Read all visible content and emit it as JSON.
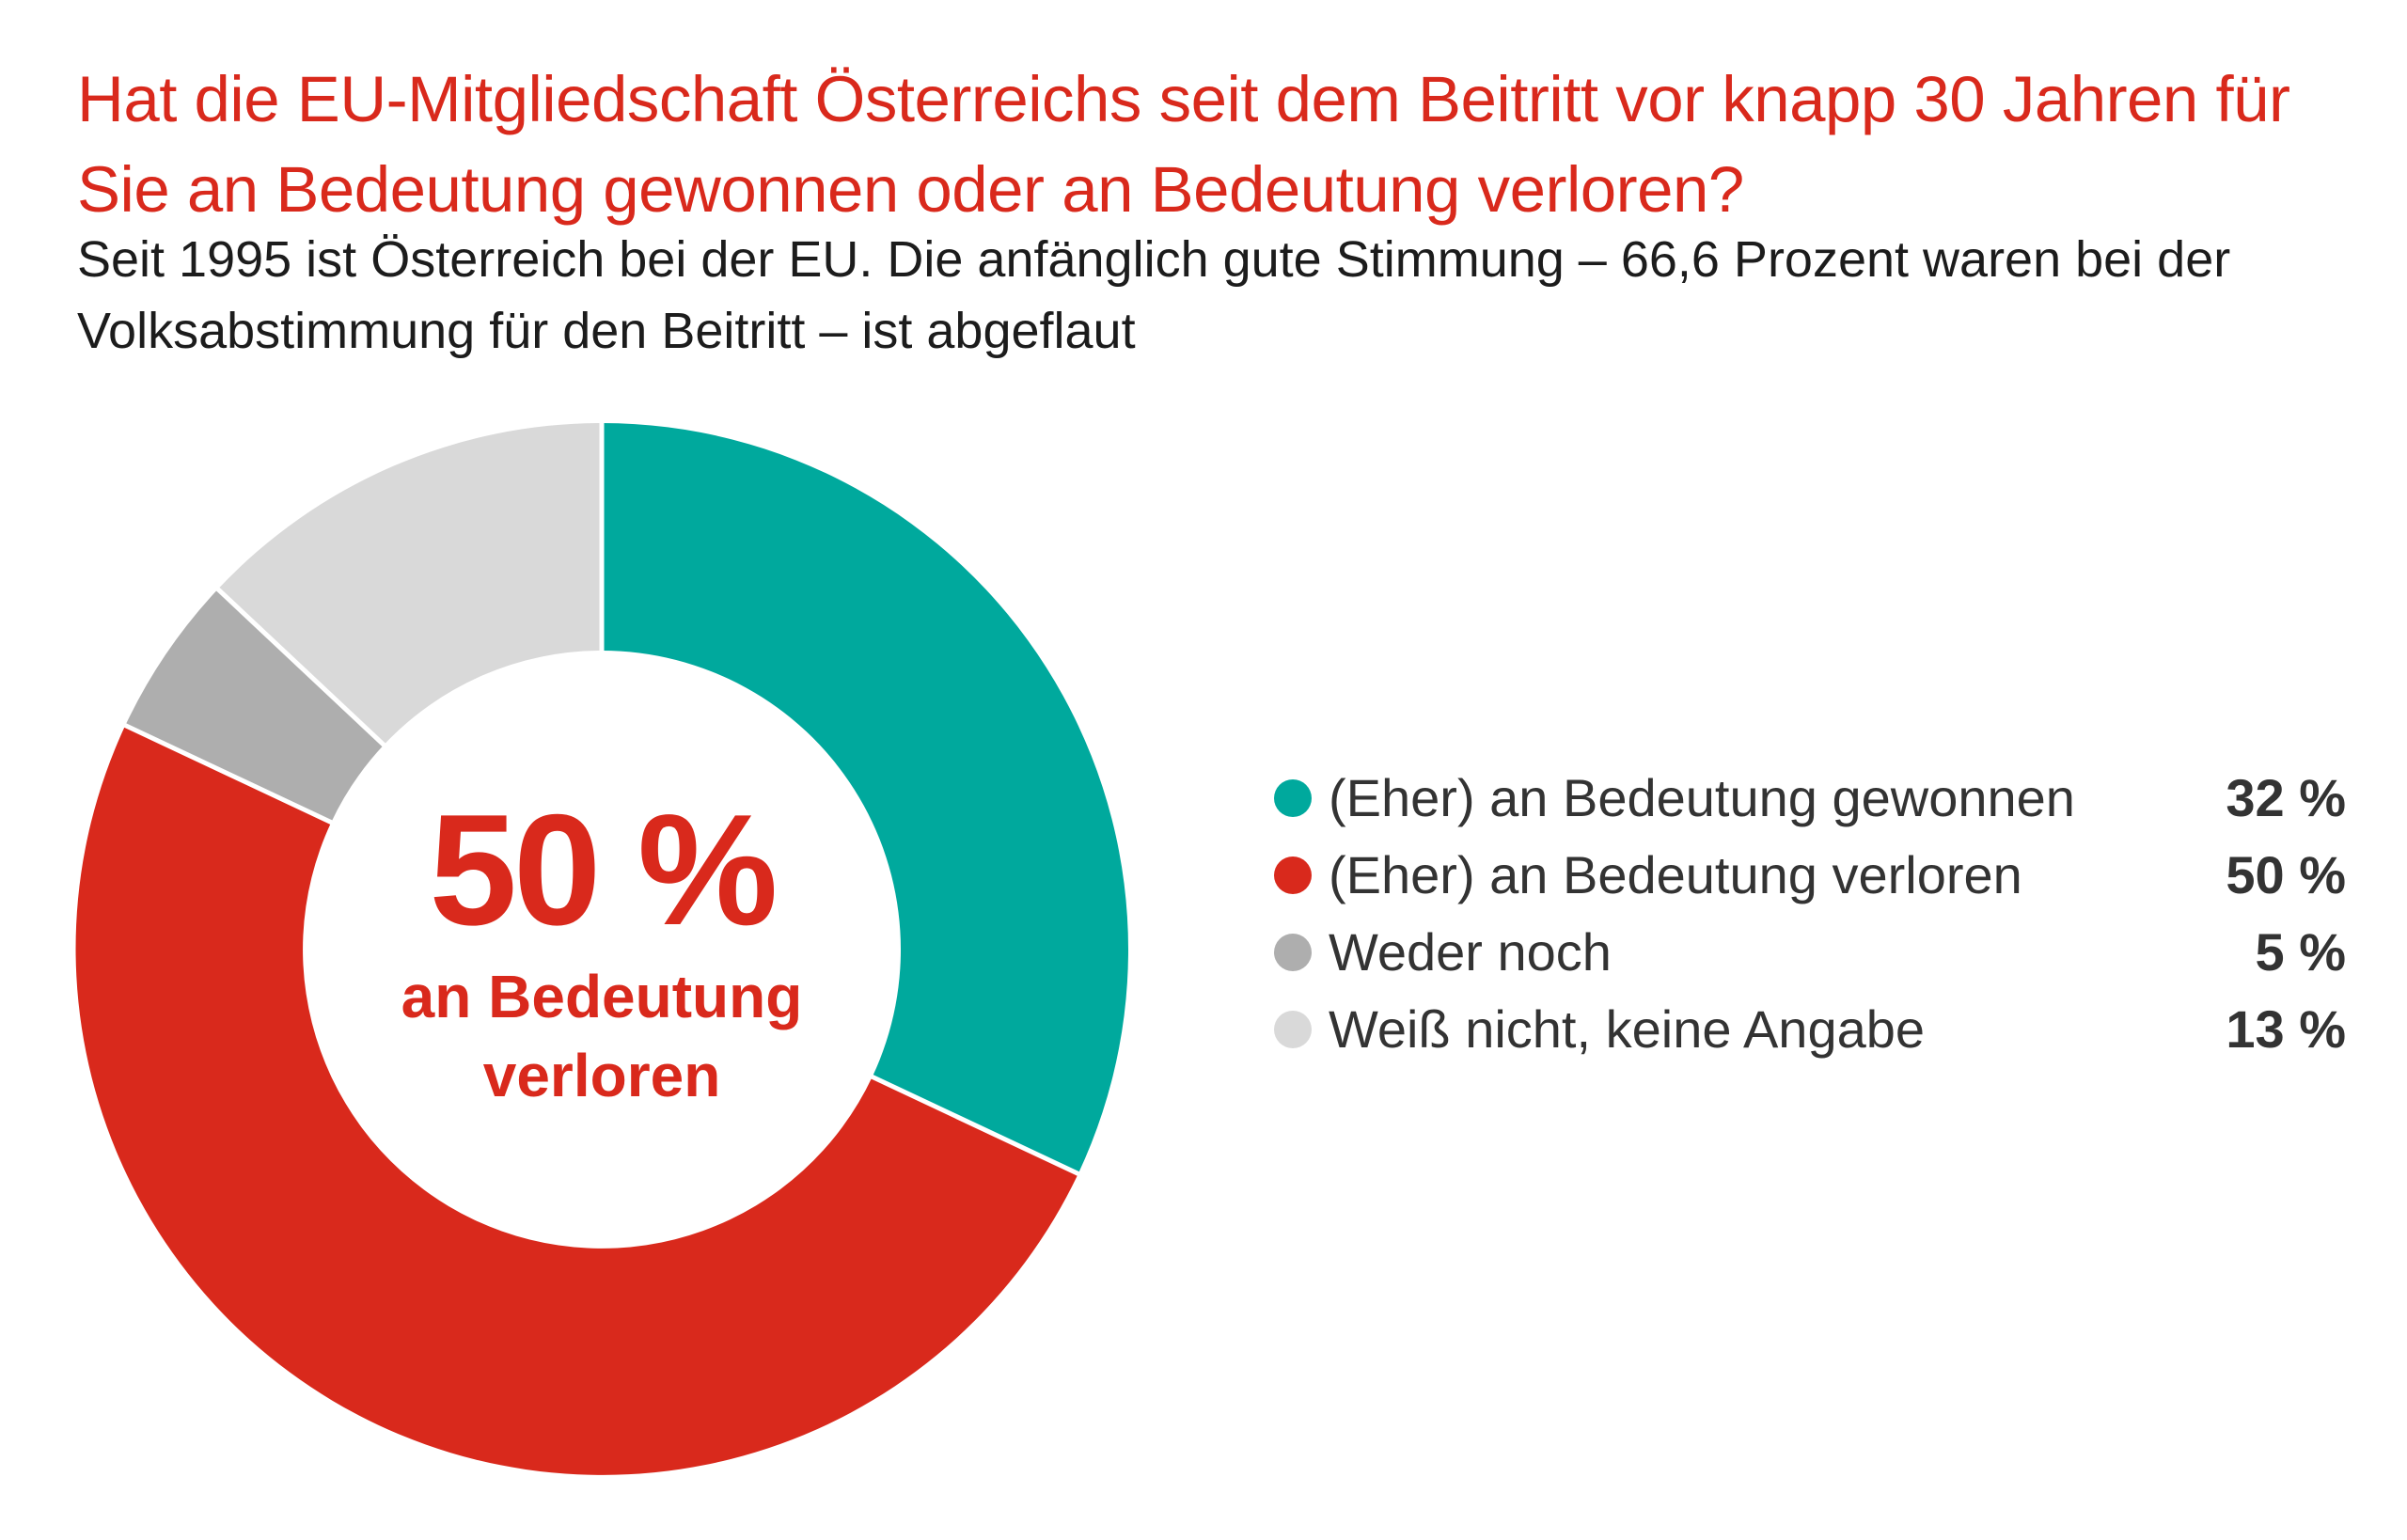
{
  "header": {
    "title": "Hat die EU-Mitgliedschaft Österreichs seit dem Beitritt vor knapp 30 Jahren für Sie an Bedeutung gewonnen oder an Bedeutung verloren?",
    "subtitle": "Seit 1995 ist Österreich bei der EU. Die anfänglich gute Stimmung – 66,6 Prozent waren bei der Volksabstimmung für den Beitritt – ist abgeflaut"
  },
  "center": {
    "value": "50 %",
    "text": "an Bedeutung verloren"
  },
  "legend": [
    {
      "label": "(Eher) an Bedeutung gewonnen",
      "value": "32 %"
    },
    {
      "label": "(Eher) an Bedeutung verloren",
      "value": "50 %"
    },
    {
      "label": "Weder noch",
      "value": "5 %"
    },
    {
      "label": "Weiß nicht, keine Angabe",
      "value": "13 %"
    }
  ],
  "colors": {
    "title": "#d9291c",
    "gewonnen": "#00a99d",
    "verloren": "#d9291c",
    "weder": "#aeaeae",
    "weiss_nicht": "#d9d9d9"
  },
  "chart_data": {
    "type": "pie",
    "variant": "donut",
    "title": "Hat die EU-Mitgliedschaft Österreichs seit dem Beitritt vor knapp 30 Jahren für Sie an Bedeutung gewonnen oder an Bedeutung verloren?",
    "subtitle": "Seit 1995 ist Österreich bei der EU. Die anfänglich gute Stimmung – 66,6 Prozent waren bei der Volksabstimmung für den Beitritt – ist abgeflaut",
    "unit": "%",
    "start_angle": "top",
    "direction": "clockwise",
    "legend_position": "right",
    "slices": [
      {
        "label": "(Eher) an Bedeutung gewonnen",
        "value": 32,
        "color": "#00a99d"
      },
      {
        "label": "(Eher) an Bedeutung verloren",
        "value": 50,
        "color": "#d9291c"
      },
      {
        "label": "Weder noch",
        "value": 5,
        "color": "#aeaeae"
      },
      {
        "label": "Weiß nicht, keine Angabe",
        "value": 13,
        "color": "#d9d9d9"
      }
    ]
  }
}
